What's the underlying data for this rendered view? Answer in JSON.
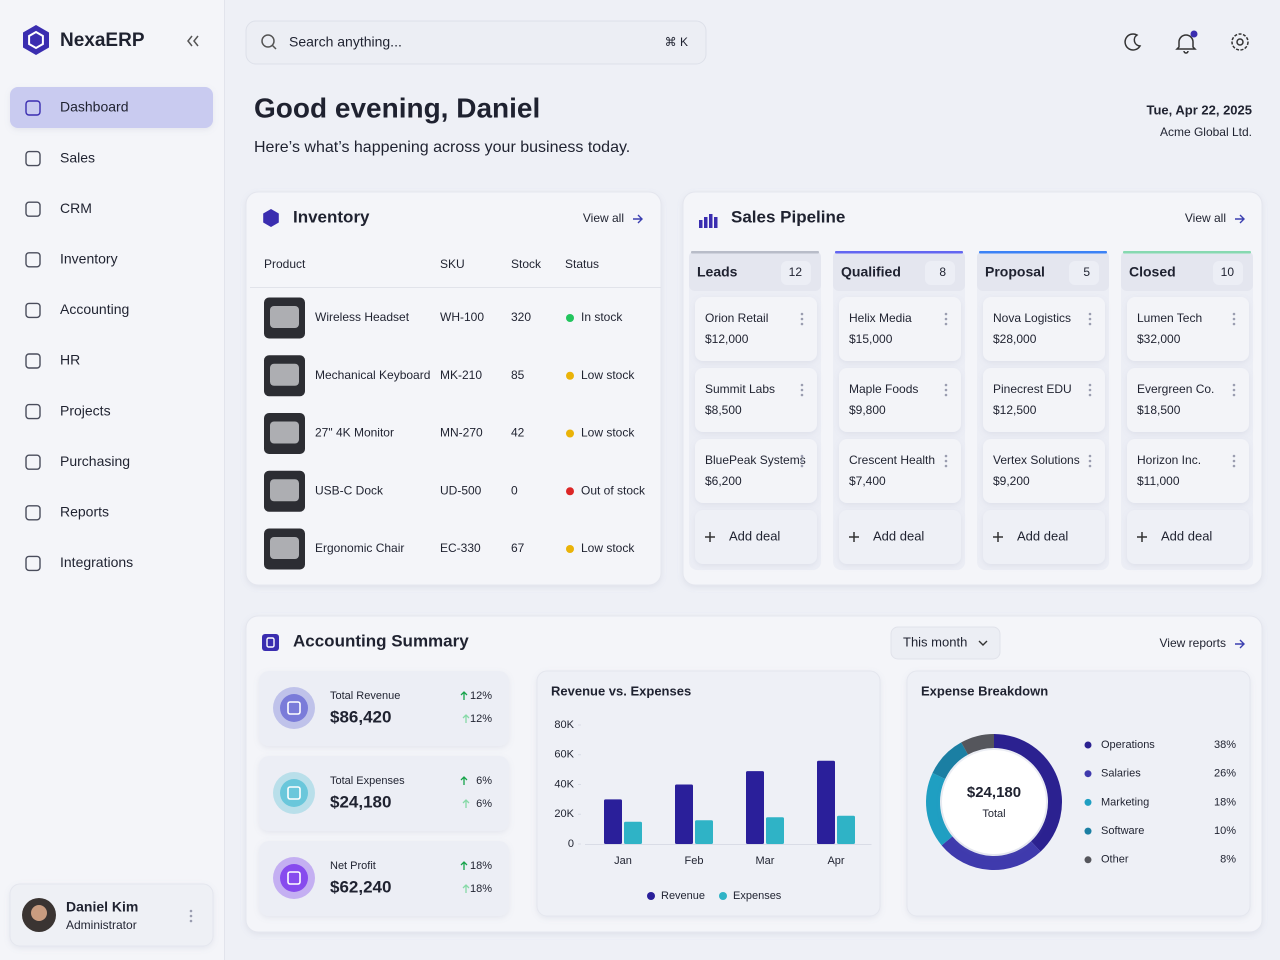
{
  "sidebar": {
    "brand": "NexaERP",
    "nav": [
      "Dashboard",
      "Sales",
      "CRM",
      "Inventory",
      "Accounting",
      "HR",
      "Projects",
      "Purchasing",
      "Reports",
      "Integrations"
    ],
    "user": {
      "name": "Daniel Kim",
      "role": "Administrator"
    }
  },
  "search": {
    "placeholder": "Search anything...",
    "shortcut": "⌘ K"
  },
  "header": {
    "greeting": "Good evening, Daniel",
    "subtitle": "Here’s what’s happening across your business today.",
    "date": "Tue, Apr 22, 2025",
    "company": "Acme Global Ltd."
  },
  "inventory": {
    "title": "Inventory",
    "view_all": "View all",
    "columns": [
      "Product",
      "SKU",
      "Stock",
      "Status"
    ],
    "rows": [
      {
        "product": "Wireless Headset",
        "sku": "WH-100",
        "stock": 320,
        "status": "In stock",
        "color": "#22c55e"
      },
      {
        "product": "Mechanical Keyboard",
        "sku": "MK-210",
        "stock": 85,
        "status": "Low stock",
        "color": "#eab308"
      },
      {
        "product": "27\" 4K Monitor",
        "sku": "MN-270",
        "stock": 42,
        "status": "Low stock",
        "color": "#eab308"
      },
      {
        "product": "USB-C Dock",
        "sku": "UD-500",
        "stock": 0,
        "status": "Out of stock",
        "color": "#dc2626"
      },
      {
        "product": "Ergonomic Chair",
        "sku": "EC-330",
        "stock": 67,
        "status": "Low stock",
        "color": "#eab308"
      }
    ]
  },
  "pipeline": {
    "title": "Sales Pipeline",
    "view_all": "View all",
    "add_deal": "Add deal",
    "stages": [
      {
        "name": "Leads",
        "count": 12,
        "color": "#b8bcc8",
        "deals": [
          {
            "name": "Orion Retail",
            "value": "$12,000"
          },
          {
            "name": "Summit Labs",
            "value": "$8,500"
          },
          {
            "name": "BluePeak Systems",
            "value": "$6,200"
          }
        ]
      },
      {
        "name": "Qualified",
        "count": 8,
        "color": "#6366f1",
        "deals": [
          {
            "name": "Helix Media",
            "value": "$15,000"
          },
          {
            "name": "Maple Foods",
            "value": "$9,800"
          },
          {
            "name": "Crescent Health",
            "value": "$7,400"
          }
        ]
      },
      {
        "name": "Proposal",
        "count": 5,
        "color": "#3b82f6",
        "deals": [
          {
            "name": "Nova Logistics",
            "value": "$28,000"
          },
          {
            "name": "Pinecrest EDU",
            "value": "$12,500"
          },
          {
            "name": "Vertex Solutions",
            "value": "$9,200"
          }
        ]
      },
      {
        "name": "Closed",
        "count": 10,
        "color": "#86d9b0",
        "deals": [
          {
            "name": "Lumen Tech",
            "value": "$32,000"
          },
          {
            "name": "Evergreen Co.",
            "value": "$18,500"
          },
          {
            "name": "Horizon Inc.",
            "value": "$11,000"
          }
        ]
      }
    ]
  },
  "accounting": {
    "title": "Accounting Summary",
    "period": "This month",
    "view_reports": "View reports",
    "kpis": [
      {
        "label": "Total Revenue",
        "value": "$86,420",
        "change": "12%",
        "color": "#6d6fd6"
      },
      {
        "label": "Total Expenses",
        "value": "$24,180",
        "change": "6%",
        "color": "#5cc3d8"
      },
      {
        "label": "Net Profit",
        "value": "$62,240",
        "change": "18%",
        "color": "#7c3aed"
      }
    ]
  },
  "chart_data": [
    {
      "type": "bar",
      "title": "Revenue vs. Expenses",
      "categories": [
        "Jan",
        "Feb",
        "Mar",
        "Apr"
      ],
      "series": [
        {
          "name": "Revenue",
          "color": "#2a1f9a",
          "values": [
            30000,
            40000,
            49000,
            56000
          ]
        },
        {
          "name": "Expenses",
          "color": "#2fb3c6",
          "values": [
            15000,
            16000,
            18000,
            19000
          ]
        }
      ],
      "ylim": [
        0,
        80000
      ],
      "yticks": [
        0,
        {
          "value": 20000,
          "label": "20K"
        },
        {
          "value": 40000,
          "label": "40K"
        },
        {
          "value": 60000,
          "label": "60K"
        },
        {
          "value": 80000,
          "label": "80K"
        }
      ]
    },
    {
      "type": "pie",
      "title": "Expense Breakdown",
      "center_value": "$24,180",
      "center_label": "Total",
      "categories": [
        "Operations",
        "Salaries",
        "Marketing",
        "Software",
        "Other"
      ],
      "values": [
        38,
        26,
        18,
        10,
        8
      ],
      "value_labels": [
        "38%",
        "26%",
        "18%",
        "10%",
        "8%"
      ],
      "colors": [
        "#2b2190",
        "#3f3aad",
        "#1f9fc2",
        "#1b7fa3",
        "#55565c"
      ]
    }
  ]
}
